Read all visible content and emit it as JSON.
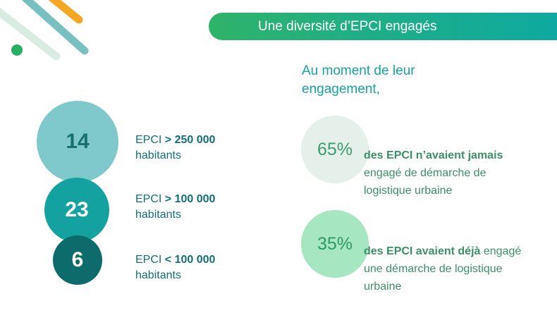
{
  "banner": {
    "title": "Une diversité d’EPCI engagés"
  },
  "intro": {
    "line1": "Au moment de leur",
    "line2": "engagement,"
  },
  "epci_stats": [
    {
      "value": "14",
      "label_prefix": "EPCI ",
      "label_bold": "> 250 000",
      "label_rest": "habitants"
    },
    {
      "value": "23",
      "label_prefix": "EPCI ",
      "label_bold": "> 100 000",
      "label_rest": "habitants"
    },
    {
      "value": "6",
      "label_prefix": "EPCI ",
      "label_bold": "< 100 000",
      "label_rest": "habitants"
    }
  ],
  "percentages": [
    {
      "value": "65%",
      "bold": "des EPCI n’avaient jamais",
      "line2": "engagé de démarche de",
      "line3": "logistique urbaine"
    },
    {
      "value": "35%",
      "bold": "des EPCI avaient déjà",
      "rest": " engagé",
      "line2": "une démarche de logistique",
      "line3": "urbaine"
    }
  ],
  "colors": {
    "banner_start": "#2fb36a",
    "banner_end": "#0ea9a0",
    "teal_text": "#126f7a",
    "green_text": "#3c8f68"
  }
}
